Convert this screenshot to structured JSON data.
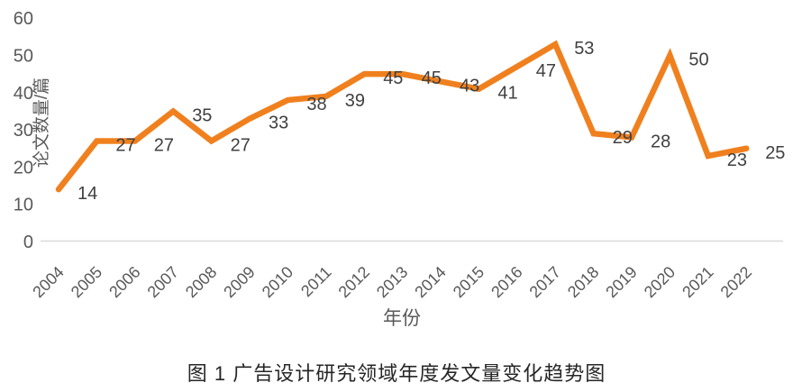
{
  "caption": "图 1 广告设计研究领域年度发文量变化趋势图",
  "chart_data": {
    "type": "line",
    "title": "",
    "xlabel": "年份",
    "ylabel": "论文数量/篇",
    "categories": [
      "2004",
      "2005",
      "2006",
      "2007",
      "2008",
      "2009",
      "2010",
      "2011",
      "2012",
      "2013",
      "2014",
      "2015",
      "2016",
      "2017",
      "2018",
      "2019",
      "2020",
      "2021",
      "2022"
    ],
    "values": [
      14,
      27,
      27,
      35,
      27,
      33,
      38,
      39,
      45,
      45,
      43,
      41,
      47,
      53,
      29,
      28,
      50,
      23,
      25
    ],
    "ylim": [
      0,
      60
    ],
    "yticks": [
      0,
      10,
      20,
      30,
      40,
      50,
      60
    ],
    "grid": false,
    "legend_position": "none",
    "data_labels": true,
    "colors": {
      "line": "#F0801E",
      "data_label": "#404040",
      "axis_text": "#595959",
      "axis_line": "#D9D9D9",
      "caption_text": "#262626"
    }
  }
}
